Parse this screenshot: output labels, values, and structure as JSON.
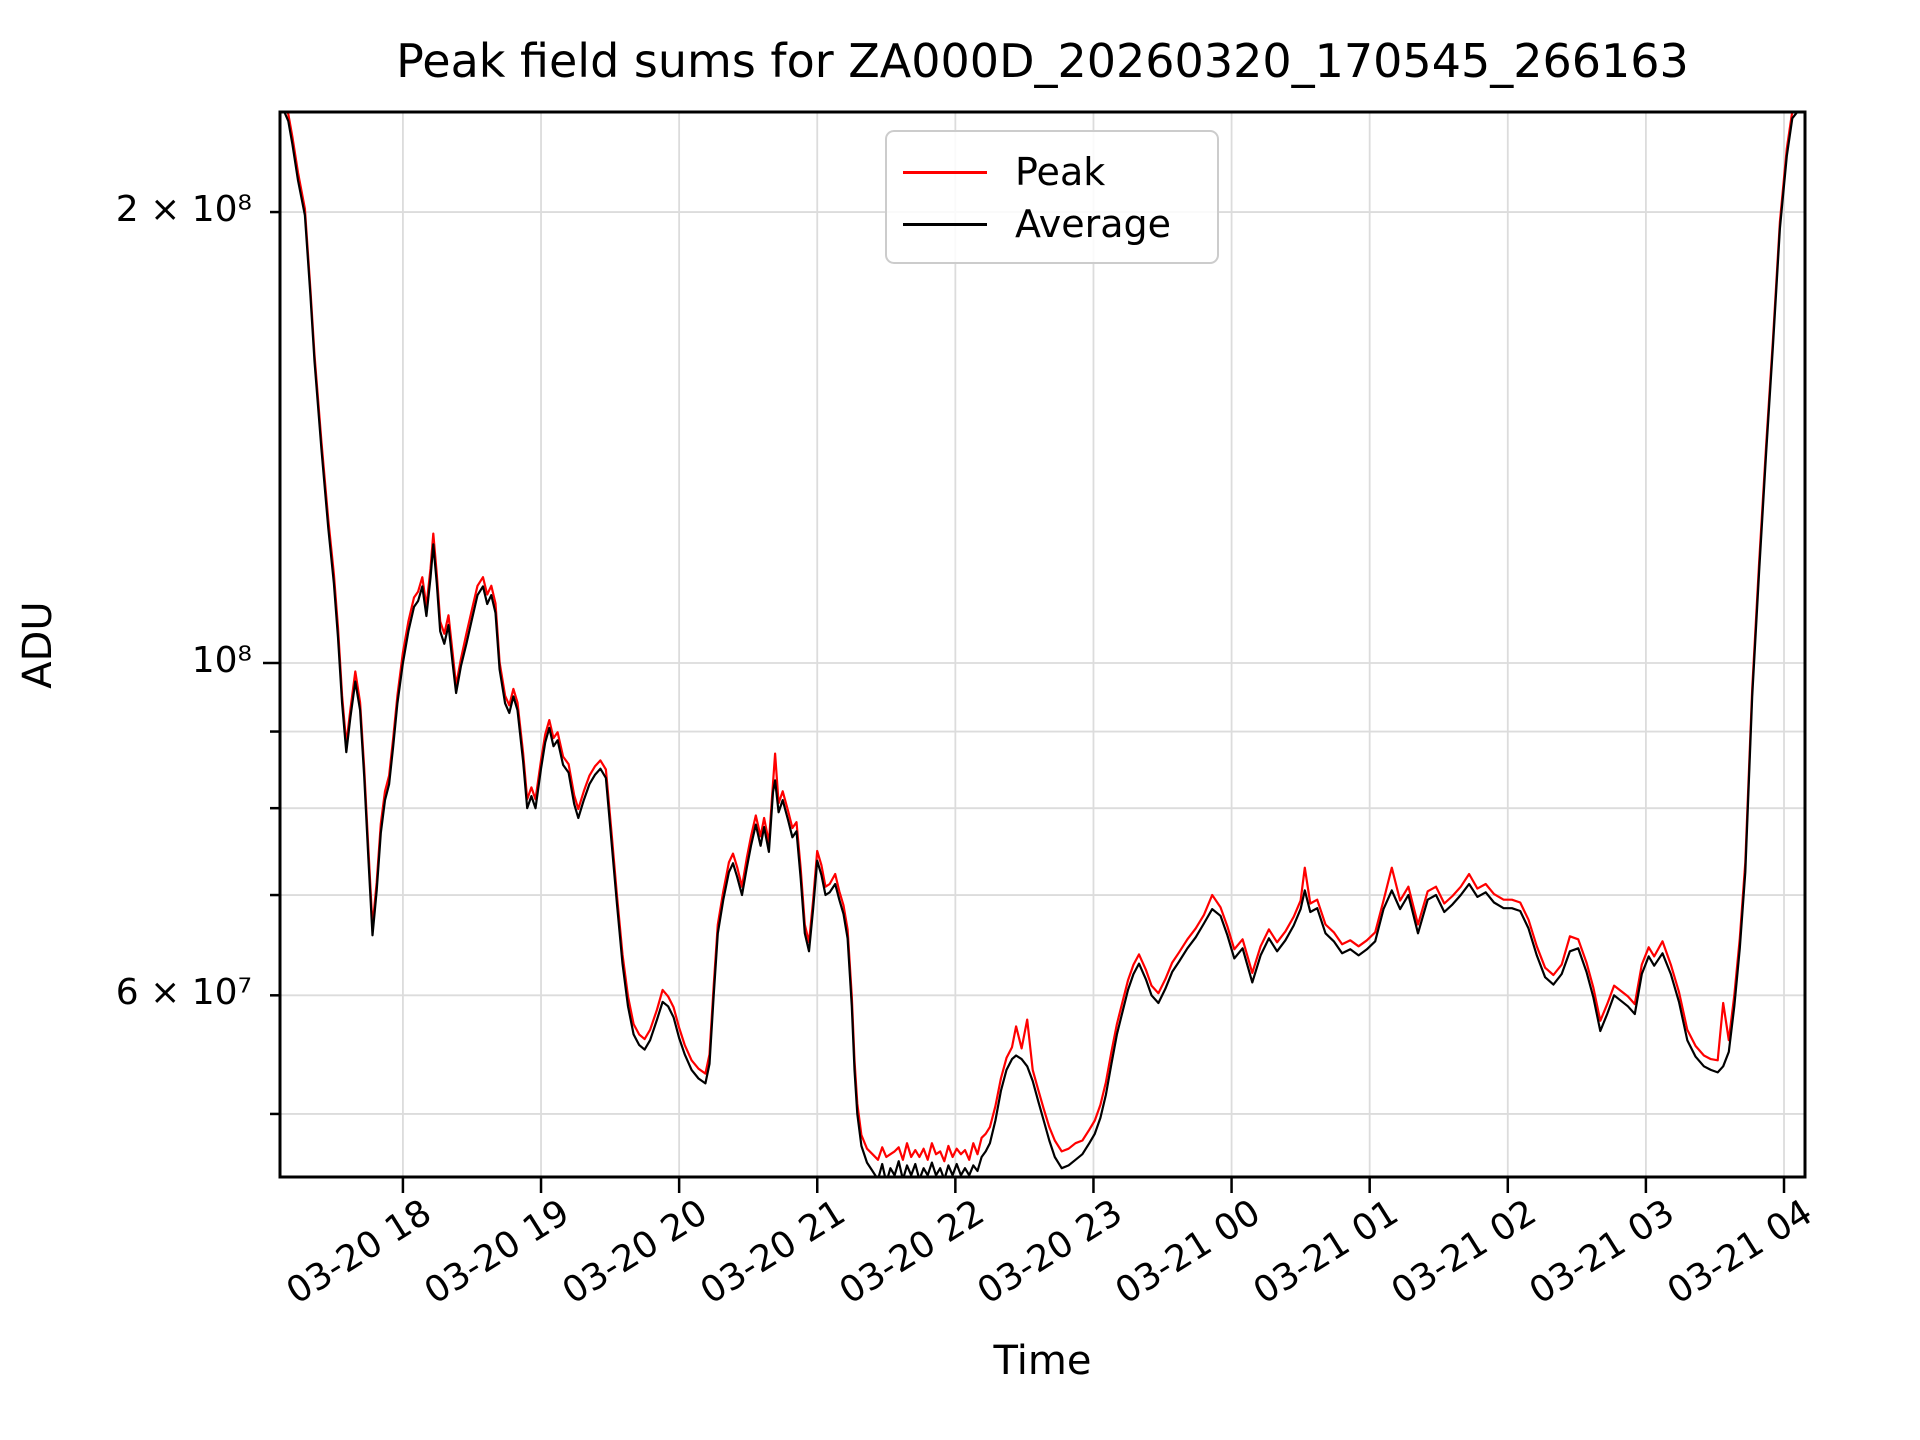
{
  "figure": {
    "background": "#ffffff"
  },
  "colors": {
    "grid": "#dcdcdc",
    "spine": "#000000",
    "legend_border": "#cccccc",
    "peak": "#ff0000",
    "average": "#000000"
  },
  "legend": {
    "entries": [
      {
        "label": "Peak"
      },
      {
        "label": "Average"
      }
    ]
  },
  "chart_data": {
    "type": "line",
    "title": "Peak field sums for ZA000D_20260320_170545_266163",
    "xlabel": "Time",
    "ylabel": "ADU",
    "yscale": "log",
    "grid": true,
    "legend_position": "upper center",
    "ylim": [
      45100000,
      235000000
    ],
    "x_domain_hours": [
      17.11,
      28.152
    ],
    "x_time_note": "t = hours since 2026-03-20 17:00; data spans 03-20 ~17:06 to 03-21 ~04:09",
    "x_ticks": [
      {
        "t": 18,
        "label": "03-20 18"
      },
      {
        "t": 19,
        "label": "03-20 19"
      },
      {
        "t": 20,
        "label": "03-20 20"
      },
      {
        "t": 21,
        "label": "03-20 21"
      },
      {
        "t": 22,
        "label": "03-20 22"
      },
      {
        "t": 23,
        "label": "03-20 23"
      },
      {
        "t": 24,
        "label": "03-21 00"
      },
      {
        "t": 25,
        "label": "03-21 01"
      },
      {
        "t": 26,
        "label": "03-21 02"
      },
      {
        "t": 27,
        "label": "03-21 03"
      },
      {
        "t": 28,
        "label": "03-21 04"
      }
    ],
    "y_ticks": [
      {
        "v": 20,
        "label": "2 × 10⁸",
        "major": false
      },
      {
        "v": 10,
        "label": "10⁸",
        "major": true
      },
      {
        "v": 9,
        "label": "",
        "major": false
      },
      {
        "v": 8,
        "label": "",
        "major": false
      },
      {
        "v": 7,
        "label": "",
        "major": false
      },
      {
        "v": 6,
        "label": "6 × 10⁷",
        "major": false
      },
      {
        "v": 5,
        "label": "",
        "major": false
      }
    ],
    "series_meta": [
      {
        "name": "Peak",
        "color": "#ff0000",
        "column": 2
      },
      {
        "name": "Average",
        "color": "#000000",
        "column": 1
      }
    ],
    "columns": [
      "t_hours",
      "average_value_1e7_ADU",
      "peak_value_1e7_ADU"
    ],
    "points": [
      [
        17.11,
        23.4,
        23.65
      ],
      [
        17.14,
        23.35,
        23.6
      ],
      [
        17.17,
        23.0,
        23.25
      ],
      [
        17.2,
        22.2,
        22.45
      ],
      [
        17.24,
        21.0,
        21.25
      ],
      [
        17.29,
        19.9,
        20.1
      ],
      [
        17.33,
        17.6,
        17.76
      ],
      [
        17.36,
        15.9,
        16.06
      ],
      [
        17.41,
        13.9,
        14.06
      ],
      [
        17.46,
        12.3,
        12.46
      ],
      [
        17.5,
        11.3,
        11.46
      ],
      [
        17.53,
        10.4,
        10.56
      ],
      [
        17.56,
        9.4,
        9.51
      ],
      [
        17.59,
        8.72,
        8.83
      ],
      [
        17.62,
        9.2,
        9.31
      ],
      [
        17.655,
        9.72,
        9.87
      ],
      [
        17.69,
        9.3,
        9.41
      ],
      [
        17.72,
        8.4,
        8.51
      ],
      [
        17.75,
        7.4,
        7.51
      ],
      [
        17.78,
        6.58,
        6.67
      ],
      [
        17.81,
        7.05,
        7.14
      ],
      [
        17.84,
        7.7,
        7.81
      ],
      [
        17.87,
        8.1,
        8.21
      ],
      [
        17.9,
        8.3,
        8.41
      ],
      [
        17.93,
        8.8,
        8.91
      ],
      [
        17.96,
        9.4,
        9.51
      ],
      [
        18.0,
        10.0,
        10.16
      ],
      [
        18.04,
        10.5,
        10.66
      ],
      [
        18.08,
        10.9,
        11.06
      ],
      [
        18.11,
        11.0,
        11.16
      ],
      [
        18.14,
        11.25,
        11.41
      ],
      [
        18.17,
        10.75,
        10.91
      ],
      [
        18.2,
        11.4,
        11.56
      ],
      [
        18.22,
        12.0,
        12.2
      ],
      [
        18.245,
        11.3,
        11.46
      ],
      [
        18.27,
        10.5,
        10.66
      ],
      [
        18.3,
        10.3,
        10.46
      ],
      [
        18.33,
        10.6,
        10.76
      ],
      [
        18.36,
        10.0,
        10.16
      ],
      [
        18.385,
        9.55,
        9.66
      ],
      [
        18.42,
        9.95,
        10.06
      ],
      [
        18.46,
        10.3,
        10.46
      ],
      [
        18.5,
        10.7,
        10.86
      ],
      [
        18.54,
        11.1,
        11.26
      ],
      [
        18.58,
        11.25,
        11.41
      ],
      [
        18.61,
        10.95,
        11.11
      ],
      [
        18.64,
        11.1,
        11.26
      ],
      [
        18.67,
        10.8,
        10.96
      ],
      [
        18.7,
        9.9,
        10.01
      ],
      [
        18.74,
        9.4,
        9.51
      ],
      [
        18.77,
        9.26,
        9.37
      ],
      [
        18.8,
        9.5,
        9.61
      ],
      [
        18.83,
        9.3,
        9.41
      ],
      [
        18.87,
        8.6,
        8.71
      ],
      [
        18.9,
        8.0,
        8.11
      ],
      [
        18.93,
        8.15,
        8.26
      ],
      [
        18.96,
        8.0,
        8.11
      ],
      [
        19.0,
        8.5,
        8.61
      ],
      [
        19.03,
        8.85,
        8.96
      ],
      [
        19.06,
        9.05,
        9.16
      ],
      [
        19.09,
        8.8,
        8.91
      ],
      [
        19.12,
        8.88,
        8.99
      ],
      [
        19.16,
        8.55,
        8.66
      ],
      [
        19.2,
        8.45,
        8.56
      ],
      [
        19.24,
        8.05,
        8.16
      ],
      [
        19.27,
        7.88,
        7.99
      ],
      [
        19.31,
        8.1,
        8.21
      ],
      [
        19.35,
        8.3,
        8.41
      ],
      [
        19.39,
        8.42,
        8.53
      ],
      [
        19.43,
        8.5,
        8.61
      ],
      [
        19.47,
        8.38,
        8.49
      ],
      [
        19.51,
        7.6,
        7.71
      ],
      [
        19.55,
        6.9,
        6.99
      ],
      [
        19.59,
        6.3,
        6.39
      ],
      [
        19.63,
        5.9,
        5.99
      ],
      [
        19.67,
        5.65,
        5.74
      ],
      [
        19.71,
        5.56,
        5.65
      ],
      [
        19.75,
        5.52,
        5.61
      ],
      [
        19.79,
        5.6,
        5.69
      ],
      [
        19.84,
        5.78,
        5.87
      ],
      [
        19.88,
        5.94,
        6.05
      ],
      [
        19.92,
        5.9,
        5.99
      ],
      [
        19.96,
        5.8,
        5.89
      ],
      [
        20.0,
        5.62,
        5.71
      ],
      [
        20.04,
        5.48,
        5.56
      ],
      [
        20.09,
        5.35,
        5.43
      ],
      [
        20.14,
        5.28,
        5.36
      ],
      [
        20.19,
        5.24,
        5.32
      ],
      [
        20.22,
        5.4,
        5.48
      ],
      [
        20.25,
        6.0,
        6.09
      ],
      [
        20.28,
        6.6,
        6.69
      ],
      [
        20.32,
        6.95,
        7.04
      ],
      [
        20.36,
        7.25,
        7.36
      ],
      [
        20.39,
        7.35,
        7.46
      ],
      [
        20.42,
        7.2,
        7.31
      ],
      [
        20.455,
        7.0,
        7.09
      ],
      [
        20.49,
        7.3,
        7.41
      ],
      [
        20.52,
        7.55,
        7.66
      ],
      [
        20.555,
        7.8,
        7.91
      ],
      [
        20.59,
        7.55,
        7.66
      ],
      [
        20.615,
        7.77,
        7.88
      ],
      [
        20.65,
        7.48,
        7.59
      ],
      [
        20.68,
        8.2,
        8.31
      ],
      [
        20.695,
        8.35,
        8.7
      ],
      [
        20.72,
        7.95,
        8.06
      ],
      [
        20.75,
        8.1,
        8.21
      ],
      [
        20.79,
        7.85,
        7.96
      ],
      [
        20.82,
        7.65,
        7.76
      ],
      [
        20.85,
        7.72,
        7.83
      ],
      [
        20.88,
        7.18,
        7.29
      ],
      [
        20.91,
        6.6,
        6.69
      ],
      [
        20.94,
        6.42,
        6.51
      ],
      [
        20.97,
        6.85,
        6.94
      ],
      [
        21.0,
        7.38,
        7.49
      ],
      [
        21.03,
        7.22,
        7.33
      ],
      [
        21.06,
        7.0,
        7.09
      ],
      [
        21.09,
        7.03,
        7.12
      ],
      [
        21.13,
        7.12,
        7.23
      ],
      [
        21.16,
        6.95,
        7.04
      ],
      [
        21.19,
        6.8,
        6.89
      ],
      [
        21.22,
        6.55,
        6.64
      ],
      [
        21.25,
        5.9,
        5.99
      ],
      [
        21.27,
        5.35,
        5.43
      ],
      [
        21.29,
        5.0,
        5.08
      ],
      [
        21.32,
        4.76,
        4.84
      ],
      [
        21.36,
        4.64,
        4.74
      ],
      [
        21.4,
        4.58,
        4.7
      ],
      [
        21.44,
        4.52,
        4.66
      ],
      [
        21.47,
        4.63,
        4.75
      ],
      [
        21.5,
        4.5,
        4.68
      ],
      [
        21.53,
        4.6,
        4.7
      ],
      [
        21.56,
        4.55,
        4.72
      ],
      [
        21.59,
        4.65,
        4.75
      ],
      [
        21.62,
        4.52,
        4.66
      ],
      [
        21.65,
        4.62,
        4.78
      ],
      [
        21.68,
        4.55,
        4.68
      ],
      [
        21.71,
        4.63,
        4.73
      ],
      [
        21.74,
        4.52,
        4.68
      ],
      [
        21.77,
        4.6,
        4.74
      ],
      [
        21.8,
        4.55,
        4.66
      ],
      [
        21.83,
        4.64,
        4.78
      ],
      [
        21.86,
        4.55,
        4.7
      ],
      [
        21.89,
        4.6,
        4.72
      ],
      [
        21.92,
        4.52,
        4.65
      ],
      [
        21.95,
        4.62,
        4.76
      ],
      [
        21.98,
        4.55,
        4.68
      ],
      [
        22.01,
        4.63,
        4.74
      ],
      [
        22.04,
        4.55,
        4.7
      ],
      [
        22.07,
        4.6,
        4.73
      ],
      [
        22.1,
        4.55,
        4.66
      ],
      [
        22.13,
        4.62,
        4.78
      ],
      [
        22.16,
        4.58,
        4.7
      ],
      [
        22.19,
        4.68,
        4.82
      ],
      [
        22.22,
        4.72,
        4.85
      ],
      [
        22.25,
        4.78,
        4.9
      ],
      [
        22.29,
        4.95,
        5.06
      ],
      [
        22.33,
        5.18,
        5.28
      ],
      [
        22.37,
        5.35,
        5.45
      ],
      [
        22.41,
        5.44,
        5.54
      ],
      [
        22.44,
        5.47,
        5.72
      ],
      [
        22.48,
        5.44,
        5.53
      ],
      [
        22.52,
        5.38,
        5.78
      ],
      [
        22.56,
        5.26,
        5.35
      ],
      [
        22.6,
        5.1,
        5.19
      ],
      [
        22.64,
        4.95,
        5.04
      ],
      [
        22.68,
        4.8,
        4.9
      ],
      [
        22.72,
        4.68,
        4.8
      ],
      [
        22.77,
        4.6,
        4.72
      ],
      [
        22.82,
        4.62,
        4.74
      ],
      [
        22.87,
        4.66,
        4.78
      ],
      [
        22.92,
        4.7,
        4.8
      ],
      [
        22.97,
        4.78,
        4.88
      ],
      [
        23.01,
        4.85,
        4.95
      ],
      [
        23.05,
        4.97,
        5.07
      ],
      [
        23.09,
        5.15,
        5.25
      ],
      [
        23.13,
        5.4,
        5.5
      ],
      [
        23.17,
        5.65,
        5.74
      ],
      [
        23.21,
        5.85,
        5.94
      ],
      [
        23.25,
        6.05,
        6.14
      ],
      [
        23.29,
        6.2,
        6.29
      ],
      [
        23.33,
        6.3,
        6.39
      ],
      [
        23.38,
        6.15,
        6.24
      ],
      [
        23.42,
        6.0,
        6.09
      ],
      [
        23.47,
        5.93,
        6.02
      ],
      [
        23.52,
        6.06,
        6.15
      ],
      [
        23.57,
        6.22,
        6.31
      ],
      [
        23.62,
        6.32,
        6.41
      ],
      [
        23.68,
        6.45,
        6.54
      ],
      [
        23.74,
        6.56,
        6.65
      ],
      [
        23.8,
        6.7,
        6.79
      ],
      [
        23.86,
        6.85,
        7.0
      ],
      [
        23.92,
        6.78,
        6.87
      ],
      [
        23.97,
        6.58,
        6.67
      ],
      [
        24.02,
        6.35,
        6.44
      ],
      [
        24.08,
        6.45,
        6.54
      ],
      [
        24.15,
        6.12,
        6.21
      ],
      [
        24.21,
        6.38,
        6.47
      ],
      [
        24.27,
        6.55,
        6.64
      ],
      [
        24.33,
        6.42,
        6.51
      ],
      [
        24.39,
        6.53,
        6.62
      ],
      [
        24.45,
        6.68,
        6.77
      ],
      [
        24.5,
        6.85,
        6.94
      ],
      [
        24.53,
        7.05,
        7.3
      ],
      [
        24.57,
        6.82,
        6.91
      ],
      [
        24.62,
        6.86,
        6.95
      ],
      [
        24.68,
        6.6,
        6.69
      ],
      [
        24.74,
        6.52,
        6.61
      ],
      [
        24.8,
        6.4,
        6.49
      ],
      [
        24.86,
        6.44,
        6.53
      ],
      [
        24.92,
        6.38,
        6.47
      ],
      [
        24.98,
        6.44,
        6.53
      ],
      [
        25.04,
        6.52,
        6.61
      ],
      [
        25.1,
        6.85,
        6.94
      ],
      [
        25.16,
        7.05,
        7.3
      ],
      [
        25.22,
        6.85,
        6.94
      ],
      [
        25.28,
        7.0,
        7.09
      ],
      [
        25.35,
        6.6,
        6.69
      ],
      [
        25.42,
        6.95,
        7.04
      ],
      [
        25.48,
        7.0,
        7.09
      ],
      [
        25.54,
        6.82,
        6.91
      ],
      [
        25.6,
        6.9,
        6.99
      ],
      [
        25.66,
        7.0,
        7.09
      ],
      [
        25.72,
        7.12,
        7.23
      ],
      [
        25.78,
        6.98,
        7.07
      ],
      [
        25.84,
        7.03,
        7.12
      ],
      [
        25.9,
        6.92,
        7.01
      ],
      [
        25.97,
        6.86,
        6.95
      ],
      [
        26.03,
        6.86,
        6.95
      ],
      [
        26.09,
        6.83,
        6.92
      ],
      [
        26.15,
        6.65,
        6.74
      ],
      [
        26.21,
        6.38,
        6.47
      ],
      [
        26.27,
        6.17,
        6.26
      ],
      [
        26.33,
        6.1,
        6.19
      ],
      [
        26.39,
        6.2,
        6.29
      ],
      [
        26.45,
        6.42,
        6.57
      ],
      [
        26.51,
        6.45,
        6.54
      ],
      [
        26.57,
        6.22,
        6.31
      ],
      [
        26.62,
        5.98,
        6.07
      ],
      [
        26.67,
        5.68,
        5.77
      ],
      [
        26.72,
        5.83,
        5.92
      ],
      [
        26.77,
        6.0,
        6.09
      ],
      [
        26.82,
        5.95,
        6.04
      ],
      [
        26.87,
        5.9,
        5.99
      ],
      [
        26.92,
        5.83,
        5.92
      ],
      [
        26.97,
        6.2,
        6.29
      ],
      [
        27.02,
        6.37,
        6.46
      ],
      [
        27.06,
        6.28,
        6.37
      ],
      [
        27.12,
        6.4,
        6.52
      ],
      [
        27.18,
        6.2,
        6.29
      ],
      [
        27.24,
        5.94,
        6.03
      ],
      [
        27.3,
        5.6,
        5.69
      ],
      [
        27.36,
        5.46,
        5.55
      ],
      [
        27.42,
        5.38,
        5.47
      ],
      [
        27.47,
        5.35,
        5.44
      ],
      [
        27.52,
        5.33,
        5.43
      ],
      [
        27.56,
        5.38,
        5.93
      ],
      [
        27.6,
        5.5,
        5.6
      ],
      [
        27.64,
        5.9,
        6.0
      ],
      [
        27.68,
        6.45,
        6.55
      ],
      [
        27.72,
        7.25,
        7.36
      ],
      [
        27.77,
        9.5,
        9.61
      ],
      [
        27.82,
        11.5,
        11.66
      ],
      [
        27.87,
        13.8,
        13.96
      ],
      [
        27.92,
        16.3,
        16.46
      ],
      [
        27.97,
        19.5,
        19.7
      ],
      [
        28.02,
        21.8,
        22.05
      ],
      [
        28.06,
        23.1,
        23.35
      ],
      [
        28.1,
        23.35,
        23.6
      ],
      [
        28.15,
        23.4,
        23.65
      ]
    ]
  }
}
